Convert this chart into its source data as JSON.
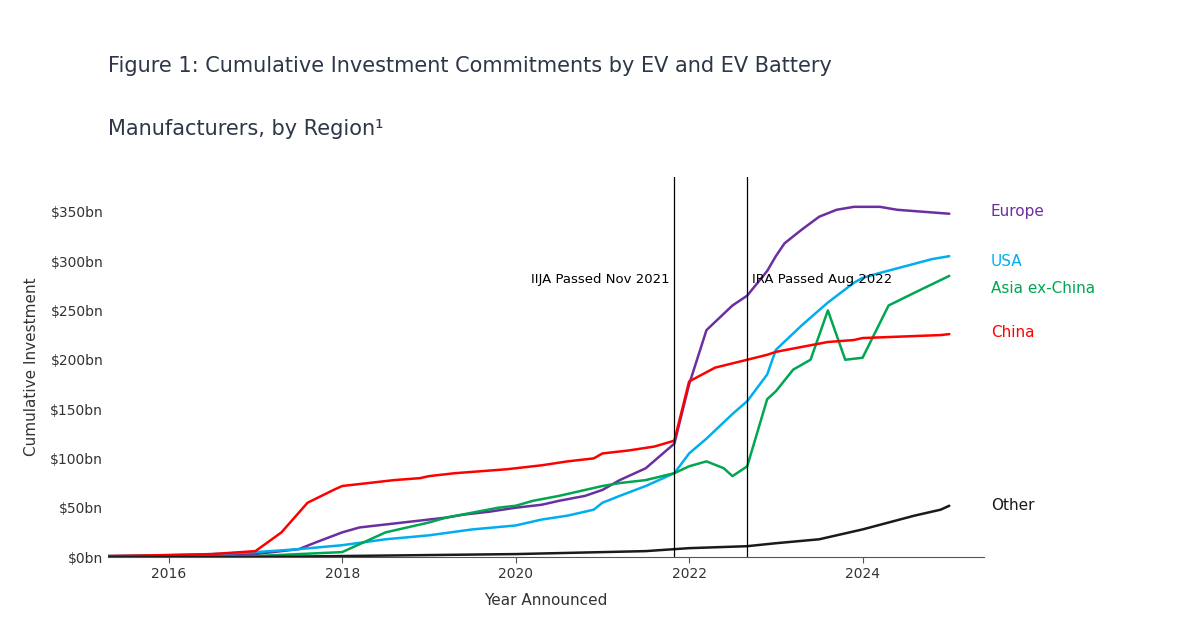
{
  "title_line1": "Figure 1: Cumulative Investment Commitments by EV and EV Battery",
  "title_line2": "Manufacturers, by Region¹",
  "xlabel": "Year Announced",
  "ylabel": "Cumulative Investment",
  "xlim": [
    2015.3,
    2025.4
  ],
  "ylim": [
    0,
    385
  ],
  "yticks": [
    0,
    50,
    100,
    150,
    200,
    250,
    300,
    350
  ],
  "ytick_labels": [
    "$0bn",
    "$50bn",
    "$100bn",
    "$150bn",
    "$200bn",
    "$250bn",
    "$300bn",
    "$350bn"
  ],
  "xticks": [
    2016,
    2018,
    2020,
    2022,
    2024
  ],
  "vline_iija": 2021.83,
  "vline_ira": 2022.67,
  "iija_label": "IIJA Passed Nov 2021",
  "ira_label": "IRA Passed Aug 2022",
  "series": [
    {
      "name": "Europe",
      "color": "#6B2FA0",
      "x": [
        2015.3,
        2016.0,
        2016.5,
        2017.0,
        2017.2,
        2017.5,
        2017.7,
        2018.0,
        2018.2,
        2018.5,
        2018.8,
        2019.0,
        2019.2,
        2019.4,
        2019.7,
        2020.0,
        2020.3,
        2020.5,
        2020.8,
        2021.0,
        2021.2,
        2021.5,
        2021.83,
        2022.0,
        2022.2,
        2022.5,
        2022.67,
        2022.9,
        2023.0,
        2023.1,
        2023.3,
        2023.5,
        2023.7,
        2023.9,
        2024.0,
        2024.2,
        2024.4,
        2024.7,
        2025.0
      ],
      "y": [
        1,
        1,
        2,
        3,
        5,
        8,
        15,
        25,
        30,
        33,
        36,
        38,
        40,
        43,
        46,
        50,
        53,
        57,
        62,
        68,
        78,
        90,
        115,
        175,
        230,
        255,
        265,
        290,
        305,
        318,
        332,
        345,
        352,
        355,
        355,
        355,
        352,
        350,
        348
      ]
    },
    {
      "name": "USA",
      "color": "#00AEEF",
      "x": [
        2015.3,
        2016.0,
        2016.5,
        2017.0,
        2017.5,
        2018.0,
        2018.5,
        2019.0,
        2019.5,
        2020.0,
        2020.3,
        2020.6,
        2020.9,
        2021.0,
        2021.2,
        2021.5,
        2021.83,
        2022.0,
        2022.2,
        2022.5,
        2022.67,
        2022.9,
        2023.0,
        2023.3,
        2023.6,
        2023.9,
        2024.0,
        2024.2,
        2024.5,
        2024.8,
        2025.0
      ],
      "y": [
        1,
        2,
        3,
        5,
        8,
        12,
        18,
        22,
        28,
        32,
        38,
        42,
        48,
        55,
        62,
        72,
        85,
        105,
        120,
        145,
        158,
        185,
        210,
        235,
        258,
        278,
        283,
        288,
        295,
        302,
        305
      ]
    },
    {
      "name": "Asia ex-China",
      "color": "#00A651",
      "x": [
        2015.3,
        2016.0,
        2017.0,
        2018.0,
        2018.5,
        2019.0,
        2019.2,
        2019.5,
        2019.8,
        2020.0,
        2020.2,
        2020.5,
        2020.8,
        2021.0,
        2021.2,
        2021.5,
        2021.83,
        2022.0,
        2022.2,
        2022.4,
        2022.5,
        2022.67,
        2022.9,
        2023.0,
        2023.2,
        2023.4,
        2023.6,
        2023.8,
        2024.0,
        2024.3,
        2024.6,
        2025.0
      ],
      "y": [
        0,
        0,
        1,
        5,
        25,
        35,
        40,
        45,
        50,
        52,
        57,
        62,
        68,
        72,
        75,
        78,
        85,
        92,
        97,
        90,
        82,
        92,
        160,
        168,
        190,
        200,
        250,
        200,
        202,
        255,
        268,
        285
      ]
    },
    {
      "name": "China",
      "color": "#FF0000",
      "x": [
        2015.3,
        2016.0,
        2016.5,
        2017.0,
        2017.3,
        2017.6,
        2017.9,
        2018.0,
        2018.3,
        2018.6,
        2018.9,
        2019.0,
        2019.3,
        2019.6,
        2019.9,
        2020.0,
        2020.3,
        2020.6,
        2020.9,
        2021.0,
        2021.3,
        2021.6,
        2021.83,
        2022.0,
        2022.3,
        2022.67,
        2022.9,
        2023.0,
        2023.3,
        2023.6,
        2023.9,
        2024.0,
        2024.3,
        2024.6,
        2024.9,
        2025.0
      ],
      "y": [
        1,
        2,
        3,
        6,
        25,
        55,
        68,
        72,
        75,
        78,
        80,
        82,
        85,
        87,
        89,
        90,
        93,
        97,
        100,
        105,
        108,
        112,
        118,
        178,
        192,
        200,
        205,
        208,
        213,
        218,
        220,
        222,
        223,
        224,
        225,
        226
      ]
    },
    {
      "name": "Other",
      "color": "#1A1A1A",
      "x": [
        2015.3,
        2016.0,
        2017.0,
        2018.0,
        2019.0,
        2020.0,
        2020.5,
        2021.0,
        2021.5,
        2021.83,
        2022.0,
        2022.67,
        2023.0,
        2023.5,
        2024.0,
        2024.3,
        2024.6,
        2024.9,
        2025.0
      ],
      "y": [
        0,
        0,
        0,
        1,
        2,
        3,
        4,
        5,
        6,
        8,
        9,
        11,
        14,
        18,
        28,
        35,
        42,
        48,
        52
      ]
    }
  ],
  "legend_items": [
    {
      "name": "Europe",
      "color": "#6B2FA0",
      "y": 350
    },
    {
      "name": "USA",
      "color": "#00AEEF",
      "y": 300
    },
    {
      "name": "Asia ex-China",
      "color": "#00A651",
      "y": 272
    },
    {
      "name": "China",
      "color": "#FF0000",
      "y": 228
    },
    {
      "name": "Other",
      "color": "#1A1A1A",
      "y": 52
    }
  ],
  "background_color": "#ffffff",
  "title_color": "#2D3748",
  "title_fontsize": 15,
  "label_fontsize": 11,
  "tick_fontsize": 10,
  "legend_fontsize": 11,
  "annotation_fontsize": 9.5
}
